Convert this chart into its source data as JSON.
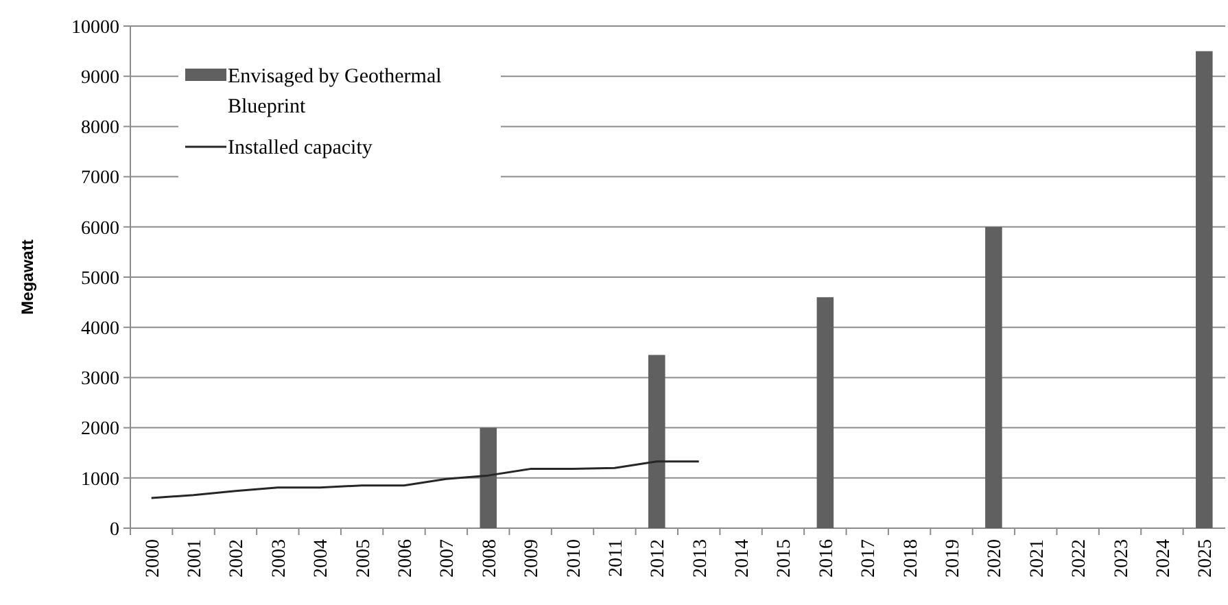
{
  "chart_data": {
    "type": "bar",
    "ylabel": "Megawatt",
    "categories": [
      "2000",
      "2001",
      "2002",
      "2003",
      "2004",
      "2005",
      "2006",
      "2007",
      "2008",
      "2009",
      "2010",
      "2011",
      "2012",
      "2013",
      "2014",
      "2015",
      "2016",
      "2017",
      "2018",
      "2019",
      "2020",
      "2021",
      "2022",
      "2023",
      "2024",
      "2025"
    ],
    "series": [
      {
        "name": "Envisaged by Geothermal Blueprint",
        "color": "#606060",
        "values": [
          null,
          null,
          null,
          null,
          null,
          null,
          null,
          null,
          2000,
          null,
          null,
          null,
          3450,
          null,
          null,
          null,
          4600,
          null,
          null,
          null,
          6000,
          null,
          null,
          null,
          null,
          9500
        ]
      },
      {
        "name": "Installed capacity",
        "type": "line",
        "color": "#262626",
        "values": [
          600,
          660,
          740,
          810,
          810,
          850,
          850,
          980,
          1050,
          1180,
          1180,
          1200,
          1330,
          1330,
          null,
          null,
          null,
          null,
          null,
          null,
          null,
          null,
          null,
          null,
          null,
          null
        ]
      }
    ],
    "ylim": [
      0,
      10000
    ],
    "yticks": [
      0,
      1000,
      2000,
      3000,
      4000,
      5000,
      6000,
      7000,
      8000,
      9000,
      10000
    ],
    "grid": "y",
    "legend": "top left",
    "line_style": "solid",
    "marker": "none"
  }
}
